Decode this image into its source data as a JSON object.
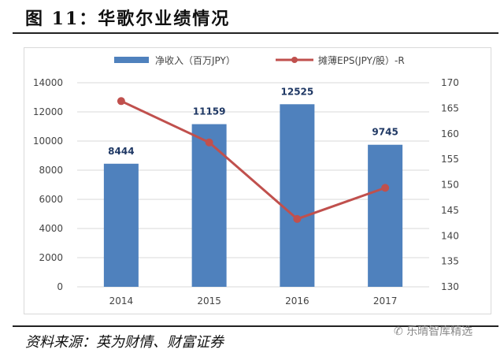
{
  "header": {
    "title": "图 11：华歌尔业绩情况"
  },
  "footer": {
    "source": "资料来源：英为财情、财富证券",
    "watermark": "乐晴智库精选"
  },
  "chart_data": {
    "type": "bar+line",
    "categories": [
      "2014",
      "2015",
      "2016",
      "2017"
    ],
    "series": [
      {
        "name": "净收入（百万JPY）",
        "type": "bar",
        "axis": "left",
        "color": "#4f81bd",
        "values": [
          8444,
          11159,
          12525,
          9745
        ],
        "data_labels": [
          "8444",
          "11159",
          "12525",
          "9745"
        ]
      },
      {
        "name": "摊薄EPS(JPY/股）-R",
        "type": "line",
        "axis": "right",
        "color": "#c0504d",
        "values": [
          166.4,
          158.3,
          143.3,
          149.4
        ]
      }
    ],
    "ylim_left": [
      0,
      14000
    ],
    "yticks_left": [
      "0",
      "2000",
      "4000",
      "6000",
      "8000",
      "10000",
      "12000",
      "14000"
    ],
    "ylim_right": [
      130,
      170
    ],
    "yticks_right": [
      "130",
      "135",
      "140",
      "145",
      "150",
      "155",
      "160",
      "165",
      "170"
    ],
    "grid": true,
    "legend": "top"
  }
}
